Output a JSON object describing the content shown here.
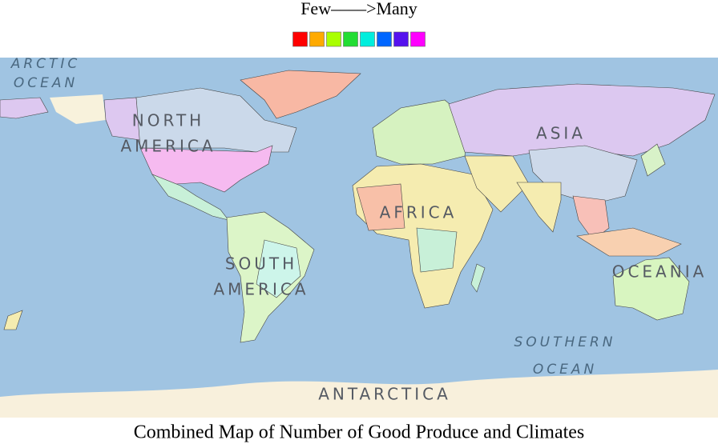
{
  "header": {
    "title": "Few––––>Many",
    "legend_colors": [
      "#ff0000",
      "#ffaa00",
      "#aaff00",
      "#22dd33",
      "#00eedd",
      "#0066ff",
      "#5511ee",
      "#ff00ff"
    ]
  },
  "map": {
    "labels": [
      {
        "lines": [
          "ARCTIC",
          "OCEAN"
        ],
        "kind": "ocean"
      },
      {
        "lines": [
          "NORTH",
          "AMERICA"
        ],
        "kind": "region"
      },
      {
        "lines": [
          "ASIA"
        ],
        "kind": "region"
      },
      {
        "lines": [
          "AFRICA"
        ],
        "kind": "region"
      },
      {
        "lines": [
          "SOUTH",
          "AMERICA"
        ],
        "kind": "region"
      },
      {
        "lines": [
          "OCEANIA"
        ],
        "kind": "region"
      },
      {
        "lines": [
          "SOUTHERN",
          "OCEAN"
        ],
        "kind": "ocean"
      },
      {
        "lines": [
          "ANTARCTICA"
        ],
        "kind": "region"
      }
    ]
  },
  "caption": "Combined Map of Number of Good Produce and Climates"
}
